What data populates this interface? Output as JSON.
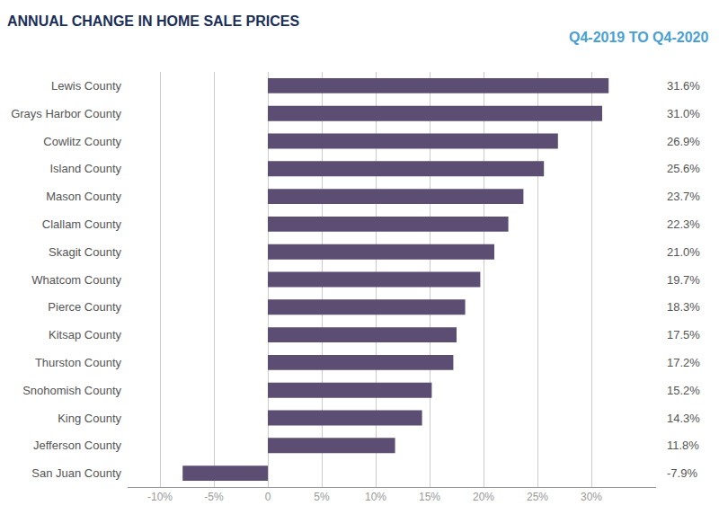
{
  "chart_data": {
    "type": "bar",
    "orientation": "horizontal",
    "title": "ANNUAL CHANGE IN HOME SALE PRICES",
    "subtitle": "Q4-2019 TO Q4-2020",
    "categories": [
      "Lewis County",
      "Grays Harbor County",
      "Cowlitz County",
      "Island County",
      "Mason County",
      "Clallam County",
      "Skagit County",
      "Whatcom County",
      "Pierce County",
      "Kitsap County",
      "Thurston County",
      "Snohomish County",
      "King County",
      "Jefferson County",
      "San Juan County"
    ],
    "values": [
      31.6,
      31.0,
      26.9,
      25.6,
      23.7,
      22.3,
      21.0,
      19.7,
      18.3,
      17.5,
      17.2,
      15.2,
      14.3,
      11.8,
      -7.9
    ],
    "value_labels": [
      "31.6%",
      "31.0%",
      "26.9%",
      "25.6%",
      "23.7%",
      "22.3%",
      "21.0%",
      "19.7%",
      "18.3%",
      "17.5%",
      "17.2%",
      "15.2%",
      "14.3%",
      "11.8%",
      "-7.9%"
    ],
    "data_labels": true,
    "color": "#5c4e72",
    "xlim": [
      -13,
      36
    ],
    "xticks": [
      {
        "value": -10,
        "label": "-10%"
      },
      {
        "value": -5,
        "label": "-5%"
      },
      0,
      {
        "value": 5,
        "label": "5%"
      },
      {
        "value": 10,
        "label": "10%"
      },
      {
        "value": 15,
        "label": "15%"
      },
      {
        "value": 20,
        "label": "20%"
      },
      {
        "value": 25,
        "label": "25%"
      },
      {
        "value": 30,
        "label": "30%"
      }
    ],
    "grid": true
  }
}
